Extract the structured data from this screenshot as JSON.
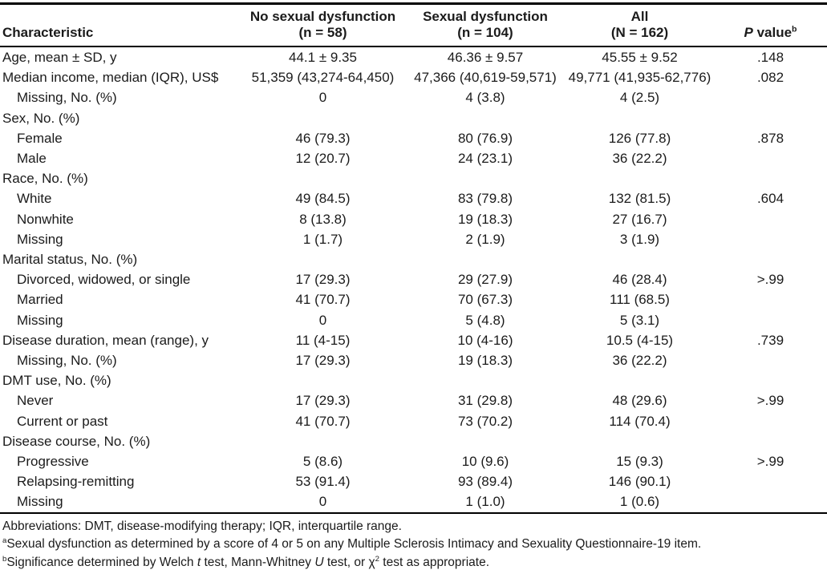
{
  "table": {
    "header": {
      "characteristic": "Characteristic",
      "columns": [
        {
          "line1": "No sexual dysfunction",
          "line2": "(n = 58)"
        },
        {
          "line1": "Sexual dysfunction",
          "line2": "(n = 104)"
        },
        {
          "line1": "All",
          "line2": "(N = 162)"
        }
      ],
      "p_value": {
        "italic": "P",
        "rest": " value",
        "sup": "b"
      }
    },
    "rows": [
      {
        "label": "Age, mean ± SD, y",
        "indent": 0,
        "values": [
          "44.1 ± 9.35",
          "46.36 ± 9.57",
          "45.55 ± 9.52",
          ".148"
        ]
      },
      {
        "label": "Median income, median (IQR), US$",
        "indent": 0,
        "values": [
          "51,359 (43,274-64,450)",
          "47,366 (40,619-59,571)",
          "49,771 (41,935-62,776)",
          ".082"
        ]
      },
      {
        "label": "Missing, No. (%)",
        "indent": 1,
        "values": [
          "0",
          "4 (3.8)",
          "4 (2.5)",
          ""
        ]
      },
      {
        "label": "Sex, No. (%)",
        "indent": 0,
        "values": [
          "",
          "",
          "",
          ""
        ]
      },
      {
        "label": "Female",
        "indent": 1,
        "values": [
          "46 (79.3)",
          "80 (76.9)",
          "126 (77.8)",
          ".878"
        ]
      },
      {
        "label": "Male",
        "indent": 1,
        "values": [
          "12 (20.7)",
          "24 (23.1)",
          "36 (22.2)",
          ""
        ]
      },
      {
        "label": "Race, No. (%)",
        "indent": 0,
        "values": [
          "",
          "",
          "",
          ""
        ]
      },
      {
        "label": "White",
        "indent": 1,
        "values": [
          "49 (84.5)",
          "83 (79.8)",
          "132 (81.5)",
          ".604"
        ]
      },
      {
        "label": "Nonwhite",
        "indent": 1,
        "values": [
          "8 (13.8)",
          "19 (18.3)",
          "27 (16.7)",
          ""
        ]
      },
      {
        "label": "Missing",
        "indent": 1,
        "values": [
          "1 (1.7)",
          "2 (1.9)",
          "3 (1.9)",
          ""
        ]
      },
      {
        "label": "Marital status, No. (%)",
        "indent": 0,
        "values": [
          "",
          "",
          "",
          ""
        ]
      },
      {
        "label": "Divorced, widowed, or single",
        "indent": 1,
        "values": [
          "17 (29.3)",
          "29 (27.9)",
          "46 (28.4)",
          ">.99"
        ]
      },
      {
        "label": "Married",
        "indent": 1,
        "values": [
          "41 (70.7)",
          "70 (67.3)",
          "111 (68.5)",
          ""
        ]
      },
      {
        "label": "Missing",
        "indent": 1,
        "values": [
          "0",
          "5 (4.8)",
          "5 (3.1)",
          ""
        ]
      },
      {
        "label": "Disease duration, mean (range), y",
        "indent": 0,
        "values": [
          "11 (4-15)",
          "10 (4-16)",
          "10.5 (4-15)",
          ".739"
        ]
      },
      {
        "label": "Missing, No. (%)",
        "indent": 1,
        "values": [
          "17 (29.3)",
          "19 (18.3)",
          "36 (22.2)",
          ""
        ]
      },
      {
        "label": "DMT use, No. (%)",
        "indent": 0,
        "values": [
          "",
          "",
          "",
          ""
        ]
      },
      {
        "label": "Never",
        "indent": 1,
        "values": [
          "17 (29.3)",
          "31 (29.8)",
          "48 (29.6)",
          ">.99"
        ]
      },
      {
        "label": "Current or past",
        "indent": 1,
        "values": [
          "41 (70.7)",
          "73 (70.2)",
          "114 (70.4)",
          ""
        ]
      },
      {
        "label": "Disease course, No. (%)",
        "indent": 0,
        "values": [
          "",
          "",
          "",
          ""
        ]
      },
      {
        "label": "Progressive",
        "indent": 1,
        "values": [
          "5 (8.6)",
          "10 (9.6)",
          "15 (9.3)",
          ">.99"
        ]
      },
      {
        "label": "Relapsing-remitting",
        "indent": 1,
        "values": [
          "53 (91.4)",
          "93 (89.4)",
          "146 (90.1)",
          ""
        ]
      },
      {
        "label": "Missing",
        "indent": 1,
        "values": [
          "0",
          "1 (1.0)",
          "1 (0.6)",
          ""
        ]
      }
    ],
    "footnotes": [
      {
        "segments": [
          {
            "t": "Abbreviations: DMT, disease-modifying therapy; IQR, interquartile range."
          }
        ]
      },
      {
        "segments": [
          {
            "t": "a",
            "s": "sup"
          },
          {
            "t": "Sexual dysfunction as determined by a score of 4 or 5 on any Multiple Sclerosis Intimacy and Sexuality Questionnaire-19 item."
          }
        ]
      },
      {
        "segments": [
          {
            "t": "b",
            "s": "sup"
          },
          {
            "t": "Significance determined by Welch "
          },
          {
            "t": "t",
            "s": "i"
          },
          {
            "t": " test, Mann-Whitney "
          },
          {
            "t": "U",
            "s": "i"
          },
          {
            "t": " test, or χ"
          },
          {
            "t": "2",
            "s": "sup"
          },
          {
            "t": " test as appropriate."
          }
        ]
      }
    ]
  }
}
